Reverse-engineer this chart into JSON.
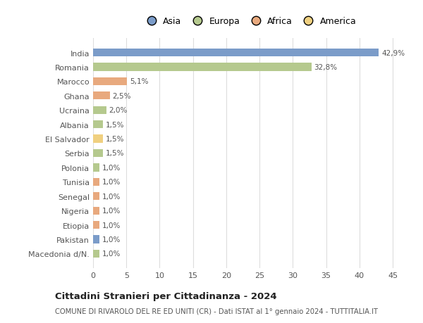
{
  "categories": [
    "Macedonia d/N.",
    "Pakistan",
    "Etiopia",
    "Nigeria",
    "Senegal",
    "Tunisia",
    "Polonia",
    "Serbia",
    "El Salvador",
    "Albania",
    "Ucraina",
    "Ghana",
    "Marocco",
    "Romania",
    "India"
  ],
  "values": [
    1.0,
    1.0,
    1.0,
    1.0,
    1.0,
    1.0,
    1.0,
    1.5,
    1.5,
    1.5,
    2.0,
    2.5,
    5.1,
    32.8,
    42.9
  ],
  "continents": [
    "Europa",
    "Asia",
    "Africa",
    "Africa",
    "Africa",
    "Africa",
    "Europa",
    "Europa",
    "America",
    "Europa",
    "Europa",
    "Africa",
    "Africa",
    "Europa",
    "Asia"
  ],
  "labels": [
    "1,0%",
    "1,0%",
    "1,0%",
    "1,0%",
    "1,0%",
    "1,0%",
    "1,0%",
    "1,5%",
    "1,5%",
    "1,5%",
    "2,0%",
    "2,5%",
    "5,1%",
    "32,8%",
    "42,9%"
  ],
  "continent_colors": {
    "Asia": "#7b9cc9",
    "Europa": "#b5c98e",
    "Africa": "#e8a97e",
    "America": "#f0d080"
  },
  "title": "Cittadini Stranieri per Cittadinanza - 2024",
  "subtitle": "COMUNE DI RIVAROLO DEL RE ED UNITI (CR) - Dati ISTAT al 1° gennaio 2024 - TUTTITALIA.IT",
  "xlim": [
    0,
    47
  ],
  "xticks": [
    0,
    5,
    10,
    15,
    20,
    25,
    30,
    35,
    40,
    45
  ],
  "background_color": "#ffffff",
  "grid_color": "#dddddd",
  "bar_height": 0.55,
  "legend_entries": [
    "Asia",
    "Europa",
    "Africa",
    "America"
  ]
}
